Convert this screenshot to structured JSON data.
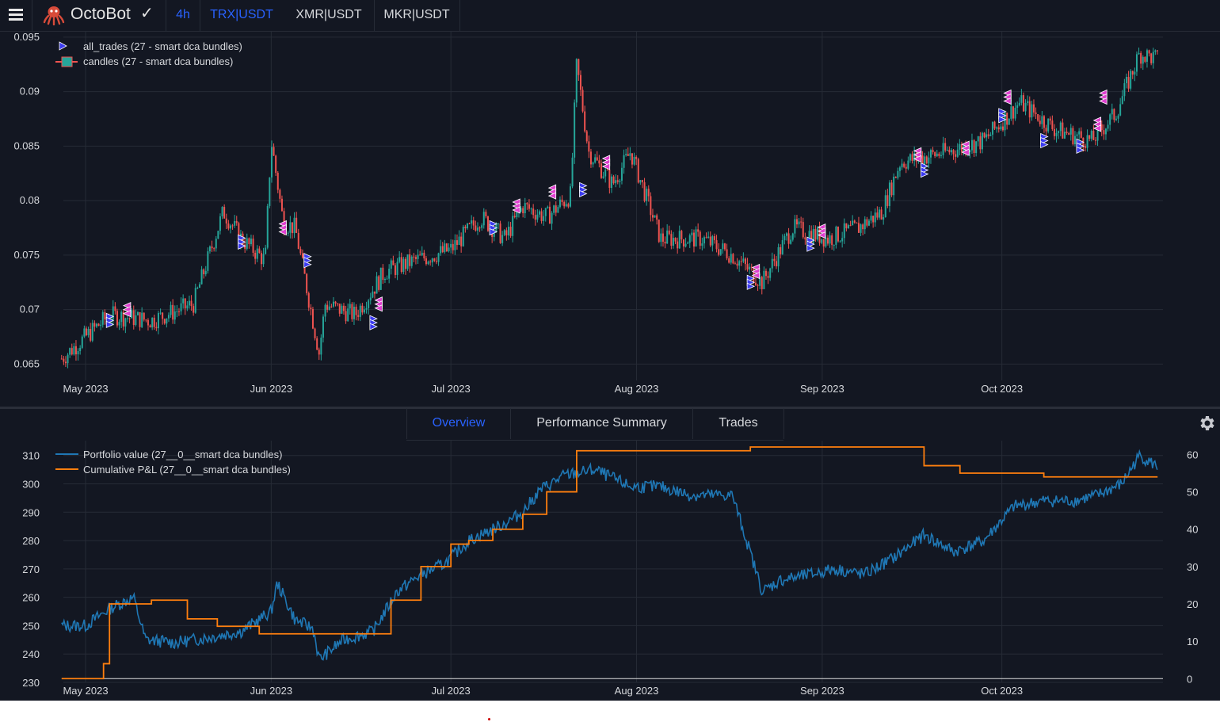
{
  "app": {
    "brand": "OctoBot",
    "timeframe": "4h",
    "symbols": [
      {
        "label": "TRX|USDT",
        "active": true
      },
      {
        "label": "XMR|USDT",
        "active": false
      },
      {
        "label": "MKR|USDT",
        "active": false
      }
    ]
  },
  "top_chart": {
    "legend": [
      "all_trades (27 - smart dca bundles)",
      "candles (27 - smart dca bundles)"
    ],
    "y_ticks": [
      "0.095",
      "0.09",
      "0.085",
      "0.08",
      "0.075",
      "0.07",
      "0.065"
    ],
    "x_ticks": [
      "May 2023",
      "Jun 2023",
      "Jul 2023",
      "Aug 2023",
      "Sep 2023",
      "Oct 2023"
    ]
  },
  "tabs": [
    {
      "label": "Overview",
      "active": true
    },
    {
      "label": "Performance Summary",
      "active": false
    },
    {
      "label": "Trades",
      "active": false
    }
  ],
  "bottom_chart": {
    "legend": [
      "Portfolio value (27__0__smart dca bundles)",
      "Cumulative P&L (27__0__smart dca bundles)"
    ],
    "y_ticks_left": [
      "310",
      "300",
      "290",
      "280",
      "270",
      "260",
      "250",
      "240",
      "230"
    ],
    "y_ticks_right": [
      "60",
      "50",
      "40",
      "30",
      "20",
      "10",
      "0"
    ],
    "x_ticks": [
      "May 2023",
      "Jun 2023",
      "Jul 2023",
      "Aug 2023",
      "Sep 2023",
      "Oct 2023"
    ]
  },
  "colors": {
    "background": "#131722",
    "accent": "#2962ff",
    "candle_up": "#26a69a",
    "candle_down": "#ef5350",
    "portfolio_line": "#1f77b4",
    "pnl_line": "#ff7f0e",
    "buy_marker": "#3b3bf0",
    "sell_marker": "#e040d0"
  },
  "chart_data": [
    {
      "type": "candlestick",
      "series": [
        {
          "name": "candles (27 - smart dca bundles)",
          "x": [
            "2023-04-27",
            "2023-05-05",
            "2023-05-12",
            "2023-05-19",
            "2023-05-24",
            "2023-05-27",
            "2023-05-31",
            "2023-06-01",
            "2023-06-03",
            "2023-06-05",
            "2023-06-09",
            "2023-06-10",
            "2023-06-15",
            "2023-06-20",
            "2023-06-25",
            "2023-07-01",
            "2023-07-06",
            "2023-07-10",
            "2023-07-13",
            "2023-07-17",
            "2023-07-21",
            "2023-07-22",
            "2023-07-24",
            "2023-07-28",
            "2023-07-31",
            "2023-08-05",
            "2023-08-12",
            "2023-08-17",
            "2023-08-22",
            "2023-08-27",
            "2023-09-02",
            "2023-09-07",
            "2023-09-11",
            "2023-09-14",
            "2023-09-22",
            "2023-09-28",
            "2023-10-04",
            "2023-10-10",
            "2023-10-16",
            "2023-10-20",
            "2023-10-24",
            "2023-10-27"
          ],
          "close": [
            0.0655,
            0.0695,
            0.069,
            0.0705,
            0.079,
            0.0765,
            0.0745,
            0.0855,
            0.078,
            0.0775,
            0.066,
            0.0705,
            0.0695,
            0.0735,
            0.0745,
            0.0755,
            0.0785,
            0.0765,
            0.0795,
            0.0785,
            0.0805,
            0.0925,
            0.0845,
            0.0815,
            0.0845,
            0.0765,
            0.0765,
            0.075,
            0.0725,
            0.0775,
            0.0765,
            0.0775,
            0.079,
            0.0835,
            0.0845,
            0.0855,
            0.089,
            0.0865,
            0.0855,
            0.088,
            0.0935,
            0.093
          ]
        }
      ],
      "trade_markers": [
        {
          "side": "buy",
          "x": "2023-05-05",
          "y": 0.069
        },
        {
          "side": "sell",
          "x": "2023-05-08",
          "y": 0.07
        },
        {
          "side": "buy",
          "x": "2023-05-27",
          "y": 0.0762
        },
        {
          "side": "sell",
          "x": "2023-06-03",
          "y": 0.0775
        },
        {
          "side": "buy",
          "x": "2023-06-07",
          "y": 0.0745
        },
        {
          "side": "buy",
          "x": "2023-06-18",
          "y": 0.0688
        },
        {
          "side": "sell",
          "x": "2023-06-19",
          "y": 0.0705
        },
        {
          "side": "buy",
          "x": "2023-07-08",
          "y": 0.0775
        },
        {
          "side": "sell",
          "x": "2023-07-12",
          "y": 0.0795
        },
        {
          "side": "sell",
          "x": "2023-07-18",
          "y": 0.0808
        },
        {
          "side": "buy",
          "x": "2023-07-23",
          "y": 0.081
        },
        {
          "side": "sell",
          "x": "2023-07-27",
          "y": 0.0835
        },
        {
          "side": "buy",
          "x": "2023-08-20",
          "y": 0.0725
        },
        {
          "side": "sell",
          "x": "2023-08-21",
          "y": 0.0735
        },
        {
          "side": "buy",
          "x": "2023-08-30",
          "y": 0.076
        },
        {
          "side": "sell",
          "x": "2023-09-01",
          "y": 0.0772
        },
        {
          "side": "sell",
          "x": "2023-09-17",
          "y": 0.0842
        },
        {
          "side": "buy",
          "x": "2023-09-18",
          "y": 0.0828
        },
        {
          "side": "sell",
          "x": "2023-09-25",
          "y": 0.0848
        },
        {
          "side": "buy",
          "x": "2023-10-01",
          "y": 0.0878
        },
        {
          "side": "sell",
          "x": "2023-10-02",
          "y": 0.0895
        },
        {
          "side": "buy",
          "x": "2023-10-08",
          "y": 0.0855
        },
        {
          "side": "buy",
          "x": "2023-10-14",
          "y": 0.085
        },
        {
          "side": "sell",
          "x": "2023-10-17",
          "y": 0.087
        },
        {
          "side": "sell",
          "x": "2023-10-18",
          "y": 0.0895
        }
      ],
      "ylim": [
        0.0635,
        0.0955
      ]
    },
    {
      "type": "line",
      "series": [
        {
          "name": "Portfolio value (27__0__smart dca bundles)",
          "axis": "left",
          "x": [
            "2023-04-27",
            "2023-05-01",
            "2023-05-05",
            "2023-05-09",
            "2023-05-11",
            "2023-05-16",
            "2023-05-22",
            "2023-05-27",
            "2023-06-01",
            "2023-06-02",
            "2023-06-05",
            "2023-06-08",
            "2023-06-09",
            "2023-06-13",
            "2023-06-18",
            "2023-06-22",
            "2023-06-26",
            "2023-06-30",
            "2023-07-04",
            "2023-07-10",
            "2023-07-13",
            "2023-07-16",
            "2023-07-20",
            "2023-07-25",
            "2023-07-31",
            "2023-08-05",
            "2023-08-10",
            "2023-08-15",
            "2023-08-17",
            "2023-08-22",
            "2023-08-25",
            "2023-08-30",
            "2023-09-03",
            "2023-09-08",
            "2023-09-13",
            "2023-09-18",
            "2023-09-23",
            "2023-09-28",
            "2023-10-03",
            "2023-10-08",
            "2023-10-13",
            "2023-10-17",
            "2023-10-21",
            "2023-10-24",
            "2023-10-27"
          ],
          "values": [
            250,
            250,
            256,
            260,
            245,
            244,
            246,
            248,
            255,
            265,
            252,
            249,
            238,
            245,
            248,
            262,
            268,
            272,
            280,
            286,
            290,
            298,
            303,
            305,
            299,
            299,
            296,
            296,
            296,
            262,
            266,
            268,
            270,
            268,
            274,
            282,
            276,
            280,
            292,
            294,
            294,
            296,
            300,
            310,
            306
          ]
        },
        {
          "name": "Cumulative P&L (27__0__smart dca bundles)",
          "axis": "right",
          "x": [
            "2023-04-27",
            "2023-05-01",
            "2023-05-04",
            "2023-05-05",
            "2023-05-11",
            "2023-05-12",
            "2023-05-18",
            "2023-05-23",
            "2023-05-30",
            "2023-06-05",
            "2023-06-19",
            "2023-06-21",
            "2023-06-26",
            "2023-07-01",
            "2023-07-04",
            "2023-07-08",
            "2023-07-13",
            "2023-07-17",
            "2023-07-22",
            "2023-08-10",
            "2023-08-20",
            "2023-09-16",
            "2023-09-18",
            "2023-09-24",
            "2023-10-01",
            "2023-10-08",
            "2023-10-18",
            "2023-10-27"
          ],
          "values": [
            0,
            0,
            4,
            20,
            20,
            21,
            16,
            14,
            12,
            12,
            12,
            21,
            30,
            36,
            37,
            40,
            44,
            50,
            61,
            61,
            62,
            62,
            57,
            55,
            55,
            54,
            54,
            54
          ]
        }
      ],
      "ylim_left": [
        230,
        313
      ],
      "ylim_right": [
        -1,
        62
      ]
    }
  ]
}
